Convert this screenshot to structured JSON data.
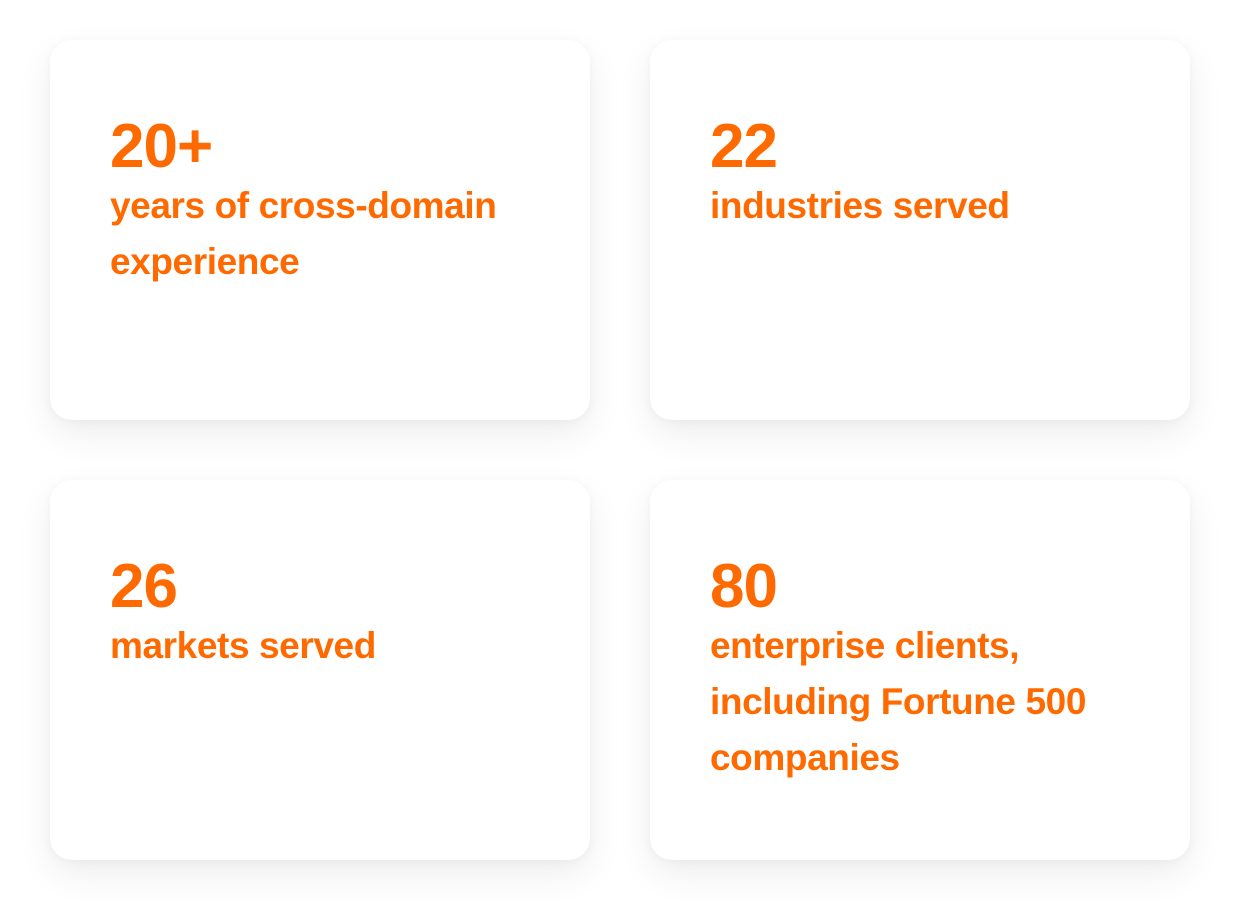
{
  "theme": {
    "accent": "#ff6a00",
    "card_background": "#ffffff",
    "page_background": "#ffffff"
  },
  "stats": [
    {
      "number": "20+",
      "label": "years of cross-domain experience"
    },
    {
      "number": "22",
      "label": "industries served"
    },
    {
      "number": "26",
      "label": "markets served"
    },
    {
      "number": "80",
      "label": "enterprise clients, including Fortune 500 companies"
    }
  ]
}
